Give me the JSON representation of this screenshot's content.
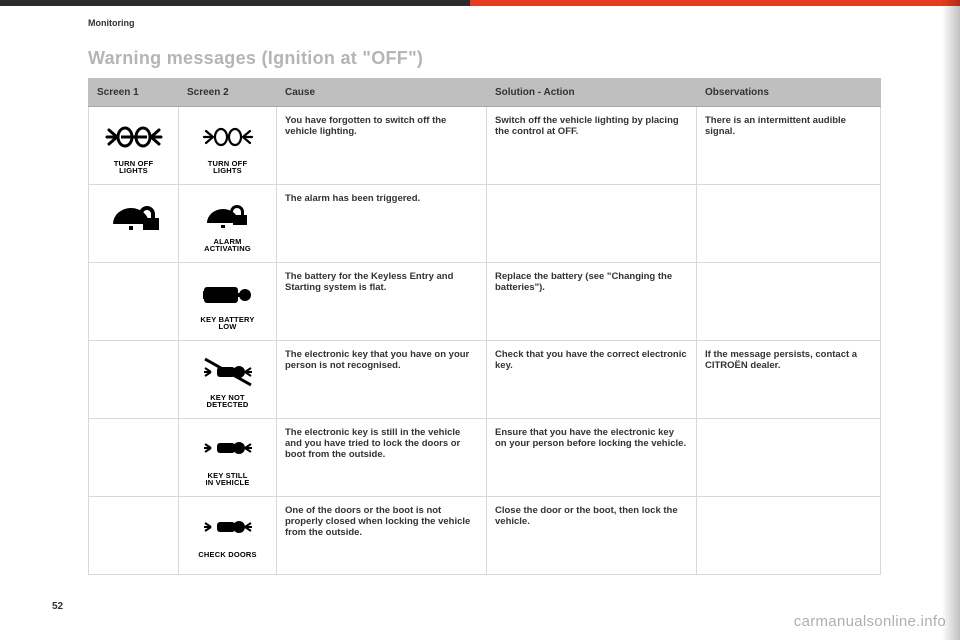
{
  "section": "Monitoring",
  "page_title": "Warning messages (Ignition at \"OFF\")",
  "page_number": "52",
  "watermark": "carmanualsonline.info",
  "colors": {
    "accent_red": "#e63b1f",
    "bar_dark": "#2b2b2b",
    "header_bg": "#bfbfbf",
    "border": "#d8d8d8"
  },
  "columns": [
    "Screen 1",
    "Screen 2",
    "Cause",
    "Solution - Action",
    "Observations"
  ],
  "rows": [
    {
      "screen1": {
        "icon": "turn-off-lights-1",
        "caption": "TURN OFF\nLIGHTS"
      },
      "screen2": {
        "icon": "turn-off-lights-2",
        "caption": "TURN OFF LIGHTS"
      },
      "cause": "You have forgotten to switch off the vehicle lighting.",
      "solution": "Switch off the vehicle lighting by placing the control at OFF.",
      "obs": "There is an intermittent audible signal."
    },
    {
      "screen1": {
        "icon": "alarm-1",
        "caption": ""
      },
      "screen2": {
        "icon": "alarm-2",
        "caption": "ALARM ACTIVATING"
      },
      "cause": "The alarm has been triggered.",
      "solution": "",
      "obs": ""
    },
    {
      "screen1": null,
      "screen2": {
        "icon": "key-battery",
        "caption": "KEY BATTERY LOW"
      },
      "cause": "The battery for the Keyless Entry and Starting system is flat.",
      "solution": "Replace the battery (see \"Changing the batteries\").",
      "obs": ""
    },
    {
      "screen1": null,
      "screen2": {
        "icon": "key-detect",
        "caption": "KEY NOT DETECTED"
      },
      "cause": "The electronic key that you have on your person is not recognised.",
      "solution": "Check that you have the correct electronic key.",
      "obs": "If the message persists, contact a CITROËN dealer."
    },
    {
      "screen1": null,
      "screen2": {
        "icon": "key-still",
        "caption": "KEY STILL\nIN VEHICLE"
      },
      "cause": "The electronic key is still in the vehicle and you have tried to lock the doors or boot from the outside.",
      "solution": "Ensure that you have the electronic key on your person before locking the vehicle.",
      "obs": ""
    },
    {
      "screen1": null,
      "screen2": {
        "icon": "check-doors",
        "caption": "CHECK DOORS"
      },
      "cause": "One of the doors or the boot is not properly closed when locking the vehicle from the outside.",
      "solution": "Close the door or the boot, then lock the vehicle.",
      "obs": ""
    }
  ]
}
